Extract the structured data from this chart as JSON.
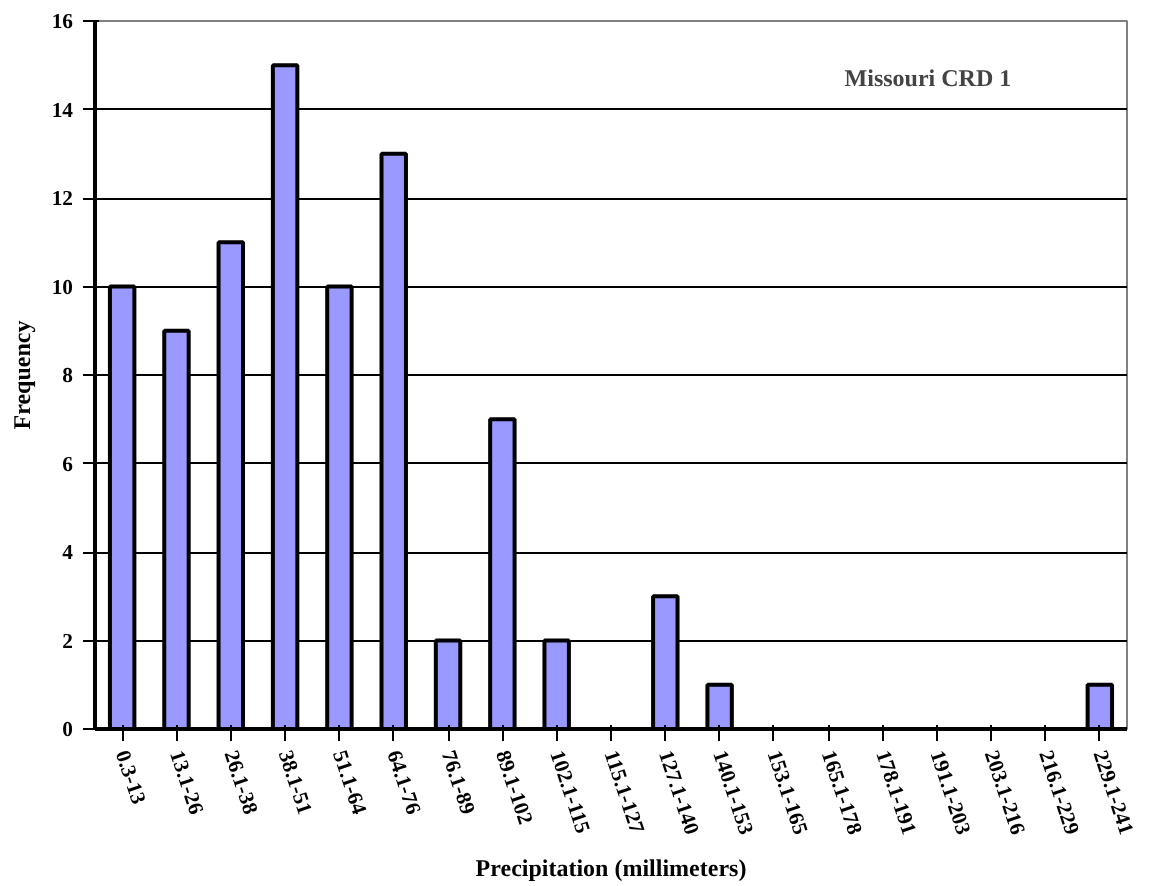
{
  "chart_data": {
    "type": "bar",
    "xlabel": "Precipitation (millimeters)",
    "ylabel": "Frequency",
    "annotations": [
      "Missouri CRD 1"
    ],
    "categories": [
      "0.3-13",
      "13.1-26",
      "26.1-38",
      "38.1-51",
      "51.1-64",
      "64.1-76",
      "76.1-89",
      "89.1-102",
      "102.1-115",
      "115.1-127",
      "127.1-140",
      "140.1-153",
      "153.1-165",
      "165.1-178",
      "178.1-191",
      "191.1-203",
      "203.1-216",
      "216.1-229",
      "229.1-241"
    ],
    "values": [
      10,
      9,
      11,
      15,
      10,
      13,
      2,
      7,
      2,
      0,
      3,
      1,
      0,
      0,
      0,
      0,
      0,
      0,
      1
    ],
    "color": "#9999ff",
    "ylim": [
      0,
      16
    ],
    "yticks": [
      0,
      2,
      4,
      6,
      8,
      10,
      12,
      14,
      16
    ],
    "grid": "y"
  }
}
